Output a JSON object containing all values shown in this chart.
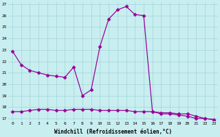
{
  "hours": [
    0,
    1,
    2,
    3,
    4,
    5,
    6,
    7,
    8,
    9,
    10,
    11,
    12,
    13,
    14,
    15,
    16,
    17,
    18,
    19,
    20,
    21,
    22,
    23
  ],
  "line1": [
    22.9,
    21.7,
    21.2,
    21.0,
    20.8,
    20.7,
    20.6,
    21.5,
    19.0,
    19.5,
    23.3,
    25.7,
    26.5,
    26.8,
    26.1,
    26.0,
    17.6,
    17.4,
    17.4,
    17.3,
    17.2,
    17.0,
    17.0,
    16.9
  ],
  "line2": [
    17.6,
    17.6,
    17.7,
    17.8,
    17.8,
    17.7,
    17.7,
    17.8,
    17.8,
    17.8,
    17.7,
    17.7,
    17.7,
    17.7,
    17.6,
    17.6,
    17.6,
    17.5,
    17.5,
    17.4,
    17.4,
    17.2,
    17.0,
    16.9
  ],
  "ylim_min": 16.8,
  "ylim_max": 27.2,
  "yticks": [
    17,
    18,
    19,
    20,
    21,
    22,
    23,
    24,
    25,
    26,
    27
  ],
  "xticks": [
    0,
    1,
    2,
    3,
    4,
    5,
    6,
    7,
    8,
    9,
    10,
    11,
    12,
    13,
    14,
    15,
    16,
    17,
    18,
    19,
    20,
    21,
    22,
    23
  ],
  "xlabel": "Windchill (Refroidissement éolien,°C)",
  "line_color": "#990099",
  "bg_color": "#c8eef0",
  "grid_color": "#a8d8dc",
  "marker": "D",
  "markersize": 2.5,
  "linewidth": 0.9
}
